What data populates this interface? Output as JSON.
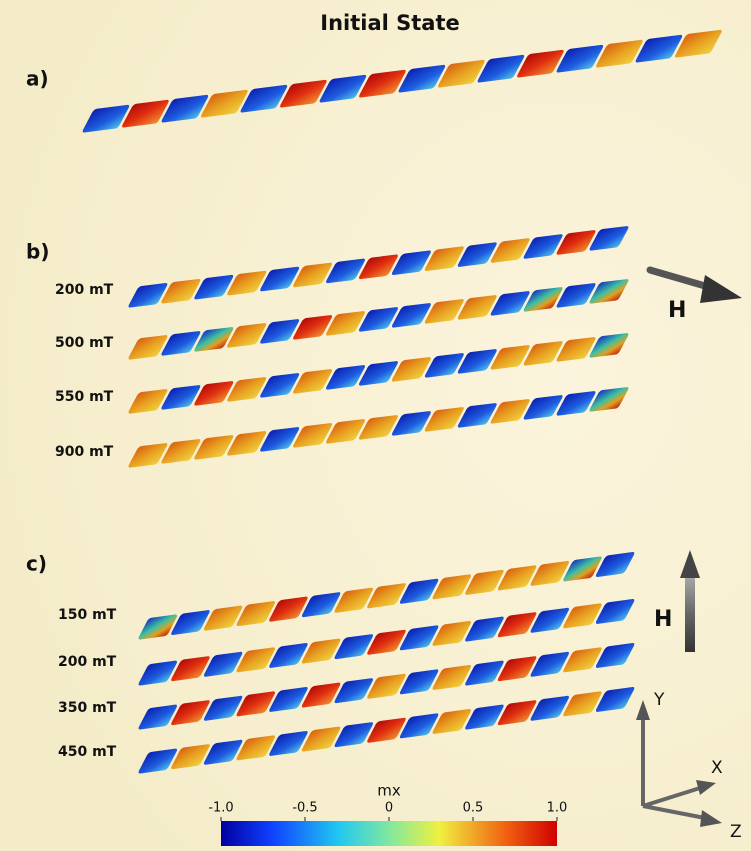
{
  "header": {
    "title": "Initial State"
  },
  "panels": [
    {
      "label": "a)",
      "fields": []
    },
    {
      "label": "b)",
      "fields": [
        "200 mT",
        "500 mT",
        "550 mT",
        "900 mT"
      ],
      "field_symbol": "H"
    },
    {
      "label": "c)",
      "fields": [
        "150 mT",
        "200 mT",
        "350 mT",
        "450 mT"
      ],
      "field_symbol": "H"
    }
  ],
  "axes": {
    "y": "Y",
    "x": "X",
    "z": "Z"
  },
  "colorbar": {
    "title": "mx",
    "lim": [
      -1,
      1
    ],
    "ticks": [
      {
        "value": -1,
        "label": "-1.0"
      },
      {
        "value": -0.5,
        "label": "-0.5"
      },
      0,
      0.5,
      {
        "value": 1,
        "label": "1.0"
      }
    ]
  }
}
